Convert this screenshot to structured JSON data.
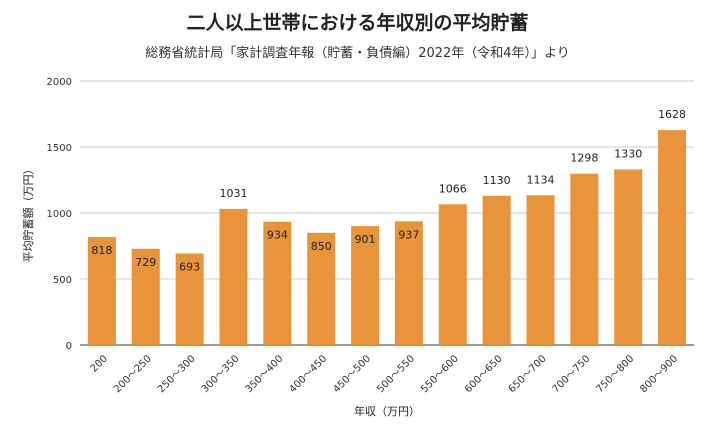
{
  "chart_data": {
    "type": "bar",
    "title": "二人以上世帯における年収別の平均貯蓄",
    "subtitle": "総務省統計局「家計調査年報（貯蓄・負債編）2022年（令和4年）」より",
    "xlabel": "年収（万円）",
    "ylabel": "平均貯蓄額（万円）",
    "categories": [
      "200",
      "200〜250",
      "250〜300",
      "300〜350",
      "350〜400",
      "400〜450",
      "450〜500",
      "500〜550",
      "550〜600",
      "600〜650",
      "650〜700",
      "700〜750",
      "750〜800",
      "800〜900"
    ],
    "values": [
      818,
      729,
      693,
      1031,
      934,
      850,
      901,
      937,
      1066,
      1130,
      1134,
      1298,
      1330,
      1628
    ],
    "ylim": [
      0,
      2000
    ],
    "yticks": [
      0,
      500,
      1000,
      1500,
      2000
    ],
    "grid": true,
    "legend": "none",
    "bar_color": "#E8943A"
  }
}
